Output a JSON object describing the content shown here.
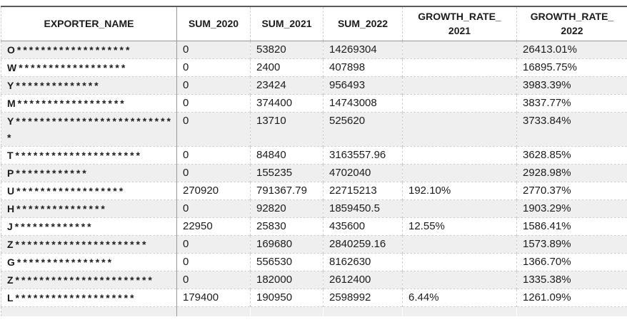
{
  "table": {
    "columns": [
      {
        "key": "exporter",
        "label": "EXPORTER_NAME"
      },
      {
        "key": "sum2020",
        "label": "SUM_2020"
      },
      {
        "key": "sum2021",
        "label": "SUM_2021"
      },
      {
        "key": "sum2022",
        "label": "SUM_2022"
      },
      {
        "key": "growth2021",
        "label": "GROWTH_RATE_\n2021"
      },
      {
        "key": "growth2022",
        "label": "GROWTH_RATE_\n2022"
      }
    ],
    "rows": [
      {
        "exporter": "O*******************",
        "sum2020": "0",
        "sum2021": "53820",
        "sum2022": "14269304",
        "growth2021": "",
        "growth2022": "26413.01%"
      },
      {
        "exporter": "W******************",
        "sum2020": "0",
        "sum2021": "2400",
        "sum2022": "407898",
        "growth2021": "",
        "growth2022": "16895.75%"
      },
      {
        "exporter": "Y**************",
        "sum2020": "0",
        "sum2021": "23424",
        "sum2022": "956493",
        "growth2021": "",
        "growth2022": "3983.39%"
      },
      {
        "exporter": "M******************",
        "sum2020": "0",
        "sum2021": "374400",
        "sum2022": "14743008",
        "growth2021": "",
        "growth2022": "3837.77%"
      },
      {
        "exporter": "Y***************************",
        "sum2020": "0",
        "sum2021": "13710",
        "sum2022": "525620",
        "growth2021": "",
        "growth2022": "3733.84%"
      },
      {
        "exporter": "T*********************",
        "sum2020": "0",
        "sum2021": "84840",
        "sum2022": "3163557.96",
        "growth2021": "",
        "growth2022": "3628.85%"
      },
      {
        "exporter": "P************",
        "sum2020": "0",
        "sum2021": "155235",
        "sum2022": "4702040",
        "growth2021": "",
        "growth2022": "2928.98%"
      },
      {
        "exporter": "U******************",
        "sum2020": "270920",
        "sum2021": "791367.79",
        "sum2022": "22715213",
        "growth2021": "192.10%",
        "growth2022": "2770.37%"
      },
      {
        "exporter": "H***************",
        "sum2020": "0",
        "sum2021": "92820",
        "sum2022": "1859450.5",
        "growth2021": "",
        "growth2022": "1903.29%"
      },
      {
        "exporter": "J*************",
        "sum2020": "22950",
        "sum2021": "25830",
        "sum2022": "435600",
        "growth2021": "12.55%",
        "growth2022": "1586.41%"
      },
      {
        "exporter": "Z**********************",
        "sum2020": "0",
        "sum2021": "169680",
        "sum2022": "2840259.16",
        "growth2021": "",
        "growth2022": "1573.89%"
      },
      {
        "exporter": "G****************",
        "sum2020": "0",
        "sum2021": "556530",
        "sum2022": "8162630",
        "growth2021": "",
        "growth2022": "1366.70%"
      },
      {
        "exporter": "Z***********************",
        "sum2020": "0",
        "sum2021": "182000",
        "sum2022": "2612400",
        "growth2021": "",
        "growth2022": "1335.38%"
      },
      {
        "exporter": "L********************",
        "sum2020": "179400",
        "sum2021": "190950",
        "sum2022": "2598992",
        "growth2021": "6.44%",
        "growth2022": "1261.09%"
      }
    ]
  },
  "colors": {
    "zebra_row": "#efefef",
    "solid_border": "#999999",
    "dashed_border": "#cfcfcf",
    "top_border": "#5a5a5a",
    "text": "#1c1c1c"
  }
}
